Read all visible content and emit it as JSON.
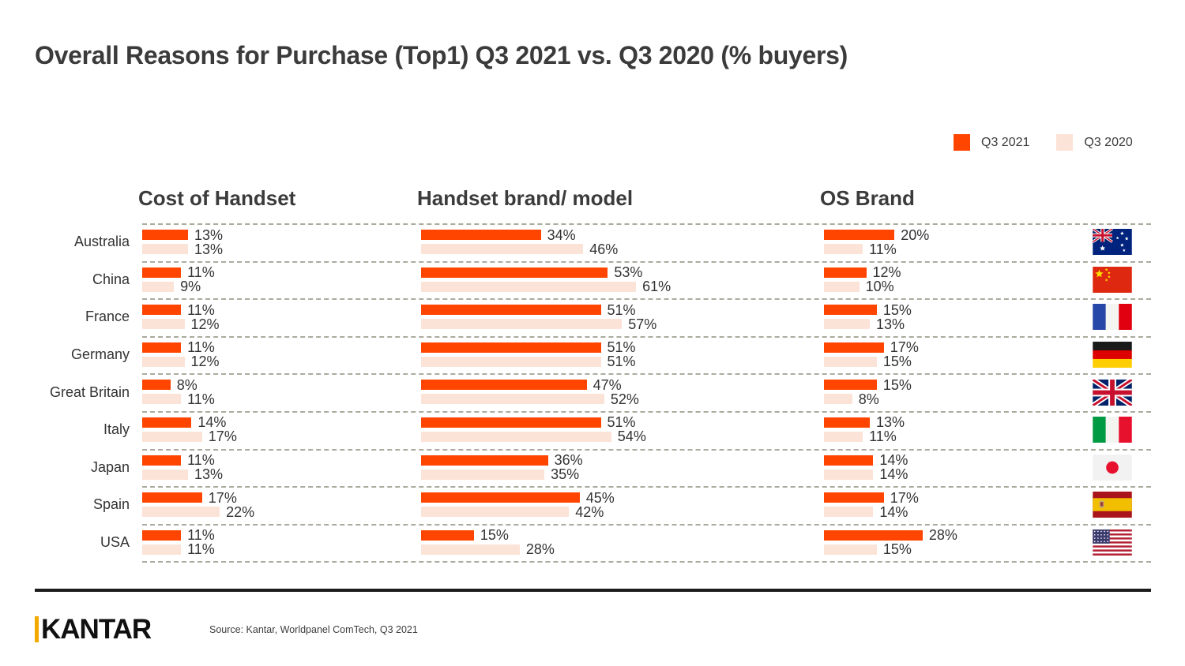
{
  "title": "Overall Reasons for Purchase (Top1) Q3 2021 vs. Q3 2020 (% buyers)",
  "legend": {
    "items": [
      {
        "label": "Q3 2021",
        "color": "#FF4500"
      },
      {
        "label": "Q3 2020",
        "color": "#FCE3D7"
      }
    ]
  },
  "columns": [
    {
      "label": "Cost of Handset"
    },
    {
      "label": "Handset brand/ model"
    },
    {
      "label": "OS Brand"
    }
  ],
  "footer": {
    "logo_text": "KANTAR",
    "source": "Source: Kantar, Worldpanel ComTech, Q3 2021"
  },
  "chart_data": {
    "type": "bar",
    "orientation": "horizontal",
    "unit": "% buyers",
    "value_suffix": "%",
    "series": [
      "Q3 2021",
      "Q3 2020"
    ],
    "series_colors": [
      "#FF4500",
      "#FCE3D7"
    ],
    "groups": [
      "Cost of Handset",
      "Handset brand/ model",
      "OS Brand"
    ],
    "xlim": [
      0,
      65
    ],
    "grid": "dashed-row-separators",
    "legend_position": "top-right",
    "rows": [
      {
        "country": "Australia",
        "flag": "au",
        "cost": [
          13,
          13
        ],
        "brand": [
          34,
          46
        ],
        "os": [
          20,
          11
        ]
      },
      {
        "country": "China",
        "flag": "cn",
        "cost": [
          11,
          9
        ],
        "brand": [
          53,
          61
        ],
        "os": [
          12,
          10
        ]
      },
      {
        "country": "France",
        "flag": "fr",
        "cost": [
          11,
          12
        ],
        "brand": [
          51,
          57
        ],
        "os": [
          15,
          13
        ]
      },
      {
        "country": "Germany",
        "flag": "de",
        "cost": [
          11,
          12
        ],
        "brand": [
          51,
          51
        ],
        "os": [
          17,
          15
        ]
      },
      {
        "country": "Great Britain",
        "flag": "gb",
        "cost": [
          8,
          11
        ],
        "brand": [
          47,
          52
        ],
        "os": [
          15,
          8
        ]
      },
      {
        "country": "Italy",
        "flag": "it",
        "cost": [
          14,
          17
        ],
        "brand": [
          51,
          54
        ],
        "os": [
          13,
          11
        ]
      },
      {
        "country": "Japan",
        "flag": "jp",
        "cost": [
          11,
          13
        ],
        "brand": [
          36,
          35
        ],
        "os": [
          14,
          14
        ]
      },
      {
        "country": "Spain",
        "flag": "es",
        "cost": [
          17,
          22
        ],
        "brand": [
          45,
          42
        ],
        "os": [
          17,
          14
        ]
      },
      {
        "country": "USA",
        "flag": "us",
        "cost": [
          11,
          11
        ],
        "brand": [
          15,
          28
        ],
        "os": [
          28,
          15
        ]
      }
    ]
  }
}
